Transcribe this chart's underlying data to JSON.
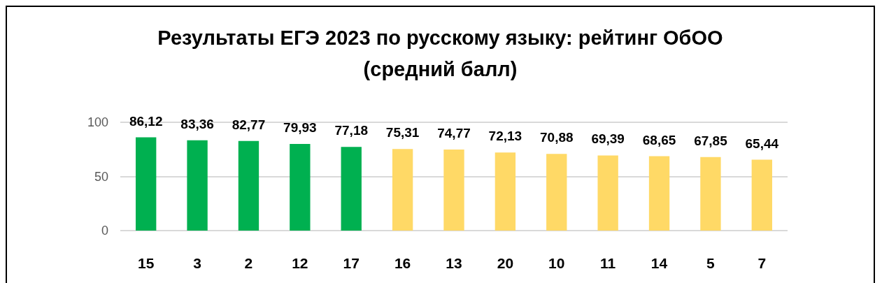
{
  "chart_data": {
    "type": "bar",
    "title": "Результаты ЕГЭ 2023 по русскому языку: рейтинг ОбОО (средний балл)",
    "categories": [
      "15",
      "3",
      "2",
      "12",
      "17",
      "16",
      "13",
      "20",
      "10",
      "11",
      "14",
      "5",
      "7"
    ],
    "values": [
      86.12,
      83.36,
      82.77,
      79.93,
      77.18,
      75.31,
      74.77,
      72.13,
      70.88,
      69.39,
      68.65,
      67.85,
      65.44
    ],
    "value_labels": [
      "86,12",
      "83,36",
      "82,77",
      "79,93",
      "77,18",
      "75,31",
      "74,77",
      "72,13",
      "70,88",
      "69,39",
      "68,65",
      "67,85",
      "65,44"
    ],
    "colors": [
      "#00b050",
      "#00b050",
      "#00b050",
      "#00b050",
      "#00b050",
      "#ffd966",
      "#ffd966",
      "#ffd966",
      "#ffd966",
      "#ffd966",
      "#ffd966",
      "#ffd966",
      "#ffd966"
    ],
    "ylim": [
      0,
      100
    ],
    "yticks": [
      0,
      50,
      100
    ],
    "grid": "y"
  }
}
